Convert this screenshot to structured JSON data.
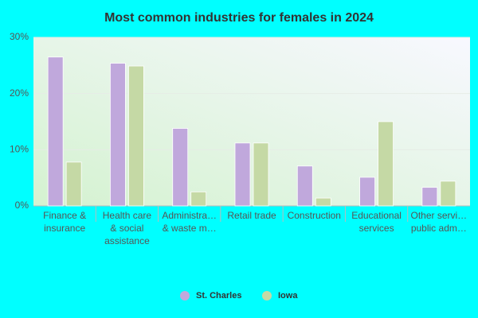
{
  "chart_data": {
    "type": "bar",
    "title": "Most common industries for females in 2024",
    "categories": [
      "Finance &\ninsurance",
      "Health care\n& social\nassistance",
      "Administra…\n& waste m…",
      "Retail trade",
      "Construction",
      "Educational\nservices",
      "Other servi…\npublic adm…"
    ],
    "series": [
      {
        "name": "St. Charles",
        "color": "#c0a8dc",
        "values": [
          26.5,
          25.4,
          13.8,
          11.2,
          7.1,
          5.1,
          3.3
        ]
      },
      {
        "name": "Iowa",
        "color": "#c5d9a5",
        "values": [
          7.8,
          24.9,
          2.5,
          11.2,
          1.4,
          15.0,
          4.4
        ]
      }
    ],
    "ylim": [
      0,
      30
    ],
    "yticks": [
      {
        "value": 0,
        "label": "0%"
      },
      {
        "value": 10,
        "label": "10%"
      },
      {
        "value": 20,
        "label": "20%"
      },
      {
        "value": 30,
        "label": "30%"
      }
    ],
    "grid": true,
    "legend": "bottom"
  }
}
